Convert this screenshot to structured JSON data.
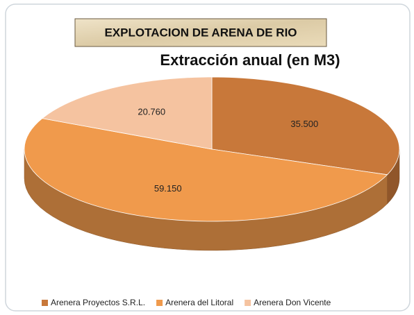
{
  "chart_data": {
    "type": "pie",
    "title": "EXPLOTACION DE ARENA DE RIO",
    "subtitle": "Extracción anual  (en M3)",
    "categories": [
      "Arenera Proyectos S.R.L.",
      "Arenera del Litoral",
      "Arenera Don Vicente"
    ],
    "values": [
      35500,
      59150,
      20760
    ],
    "value_labels": [
      "35.500",
      "59.150",
      "20.760"
    ],
    "colors": [
      "#c8783a",
      "#f09a4c",
      "#f5c3a0"
    ],
    "legend": "bottom"
  }
}
